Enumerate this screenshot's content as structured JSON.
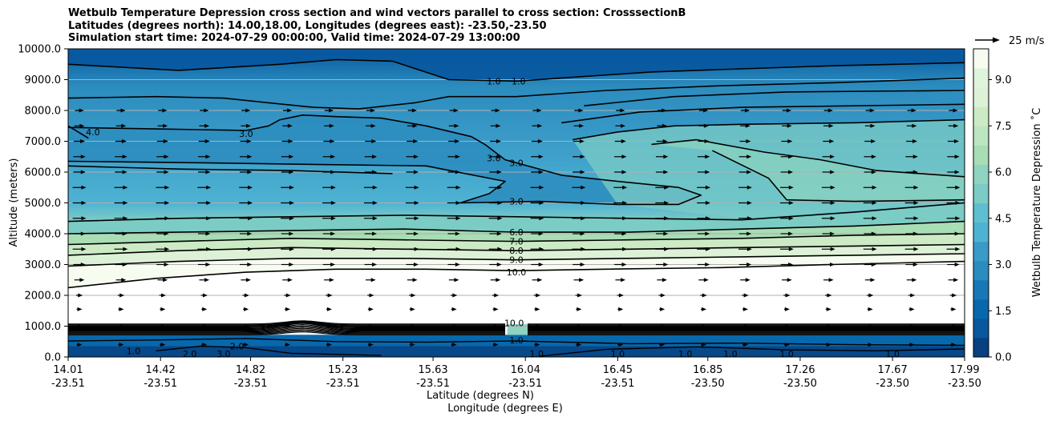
{
  "title_lines": [
    "Wetbulb Temperature Depression cross section and wind vectors parallel to cross section: CrosssectionB",
    "Latitudes (degrees north): 14.00,18.00, Longitudes (degrees east): -23.50,-23.50",
    "Simulation start time: 2024-07-29 00:00:00, Valid time: 2024-07-29 13:00:00"
  ],
  "chart_data": {
    "type": "heatmap",
    "subtype": "filled contour cross-section with line contours and wind vectors",
    "ylabel": "Altitude (meters)",
    "xlabel_lines": [
      "Latitude (degrees N)",
      "Longitude (degrees E)"
    ],
    "ylim": [
      0,
      10000
    ],
    "y_ticks": [
      "0.0",
      "1000.0",
      "2000.0",
      "3000.0",
      "4000.0",
      "5000.0",
      "6000.0",
      "7000.0",
      "8000.0",
      "9000.0",
      "10000.0"
    ],
    "x_ticks": [
      {
        "lat": "14.01",
        "lon": "-23.51"
      },
      {
        "lat": "14.42",
        "lon": "-23.51"
      },
      {
        "lat": "14.82",
        "lon": "-23.51"
      },
      {
        "lat": "15.23",
        "lon": "-23.51"
      },
      {
        "lat": "15.63",
        "lon": "-23.51"
      },
      {
        "lat": "16.04",
        "lon": "-23.51"
      },
      {
        "lat": "16.45",
        "lon": "-23.51"
      },
      {
        "lat": "16.85",
        "lon": "-23.50"
      },
      {
        "lat": "17.26",
        "lon": "-23.50"
      },
      {
        "lat": "17.67",
        "lon": "-23.50"
      },
      {
        "lat": "17.99",
        "lon": "-23.50"
      }
    ],
    "grid": "horizontal",
    "colorbar": {
      "label": "Wetbulb Temperature Depression $^\\circ$C",
      "label_display": "Wetbulb Temperature Depression ˚C",
      "range": [
        0,
        10
      ],
      "ticks": [
        "0.0",
        "1.5",
        "3.0",
        "4.5",
        "6.0",
        "7.5",
        "9.0"
      ],
      "colors": [
        "#084081",
        "#08589e",
        "#0868ac",
        "#1a77b6",
        "#2b8cbe",
        "#3a9bc8",
        "#4eb3d3",
        "#5fbfd0",
        "#7bccc4",
        "#8fd3c0",
        "#a8ddb5",
        "#bce5c1",
        "#ccebc5",
        "#dcf1d6",
        "#e0f3db",
        "#f7fcf0"
      ]
    },
    "quiver_key": {
      "label": "25 m/s",
      "speed": 25
    },
    "contour_labels": [
      {
        "text": "1.0",
        "lat": 15.9,
        "alt": 8950
      },
      {
        "text": "1.0",
        "lat": 16.01,
        "alt": 8950
      },
      {
        "text": "3.0",
        "lat": 14.8,
        "alt": 7250
      },
      {
        "text": "4.0",
        "lat": 14.12,
        "alt": 7300
      },
      {
        "text": "3.0",
        "lat": 15.9,
        "alt": 6450
      },
      {
        "text": "3.0",
        "lat": 16.0,
        "alt": 6300
      },
      {
        "text": "3.0",
        "lat": 16.0,
        "alt": 5050
      },
      {
        "text": "6.0",
        "lat": 16.0,
        "alt": 4050
      },
      {
        "text": "7.0",
        "lat": 16.0,
        "alt": 3750
      },
      {
        "text": "8.0",
        "lat": 16.0,
        "alt": 3450
      },
      {
        "text": "9.0",
        "lat": 16.0,
        "alt": 3150
      },
      {
        "text": "10.0",
        "lat": 16.0,
        "alt": 2750
      },
      {
        "text": "10.0",
        "lat": 15.99,
        "alt": 1100
      },
      {
        "text": "1.0",
        "lat": 16.0,
        "alt": 550
      },
      {
        "text": "1.0",
        "lat": 14.3,
        "alt": 200
      },
      {
        "text": "2.0",
        "lat": 14.55,
        "alt": 100
      },
      {
        "text": "3.0",
        "lat": 14.7,
        "alt": 100
      },
      {
        "text": "2.0",
        "lat": 14.76,
        "alt": 350
      },
      {
        "text": "1.0",
        "lat": 16.09,
        "alt": 100
      },
      {
        "text": "1.0",
        "lat": 16.45,
        "alt": 100
      },
      {
        "text": "1.0",
        "lat": 16.75,
        "alt": 100
      },
      {
        "text": "1.0",
        "lat": 16.95,
        "alt": 100
      },
      {
        "text": "1.0",
        "lat": 17.2,
        "alt": 100
      },
      {
        "text": "1.0",
        "lat": 17.67,
        "alt": 100
      }
    ],
    "contour_lines": [
      {
        "level": 1.0,
        "points": [
          [
            14.01,
            9500
          ],
          [
            14.5,
            9300
          ],
          [
            14.95,
            9500
          ],
          [
            15.2,
            9650
          ],
          [
            15.45,
            9600
          ],
          [
            15.7,
            9000
          ],
          [
            16.0,
            8950
          ],
          [
            16.3,
            9100
          ],
          [
            16.6,
            9250
          ],
          [
            17.0,
            9350
          ],
          [
            17.4,
            9450
          ],
          [
            17.99,
            9550
          ]
        ]
      },
      {
        "level": 2.0,
        "points": [
          [
            14.01,
            8400
          ],
          [
            14.4,
            8450
          ],
          [
            14.7,
            8400
          ],
          [
            14.9,
            8250
          ],
          [
            15.1,
            8100
          ],
          [
            15.3,
            8050
          ],
          [
            15.55,
            8250
          ],
          [
            15.7,
            8450
          ],
          [
            16.0,
            8450
          ],
          [
            16.4,
            8650
          ],
          [
            16.9,
            8800
          ],
          [
            17.4,
            8900
          ],
          [
            17.99,
            9050
          ]
        ]
      },
      {
        "level": 2.5,
        "points": [
          [
            16.3,
            8150
          ],
          [
            16.7,
            8450
          ],
          [
            17.2,
            8600
          ],
          [
            17.99,
            8650
          ]
        ]
      },
      {
        "level": 2.8,
        "points": [
          [
            16.2,
            7600
          ],
          [
            16.55,
            7950
          ],
          [
            17.0,
            8100
          ],
          [
            17.5,
            8150
          ],
          [
            17.99,
            8200
          ]
        ]
      },
      {
        "level": 3.0,
        "points": [
          [
            14.01,
            7450
          ],
          [
            14.4,
            7400
          ],
          [
            14.8,
            7350
          ],
          [
            14.9,
            7500
          ],
          [
            14.95,
            7700
          ],
          [
            15.05,
            7850
          ],
          [
            15.2,
            7800
          ],
          [
            15.4,
            7750
          ],
          [
            15.6,
            7500
          ],
          [
            15.8,
            7150
          ],
          [
            15.86,
            6900
          ],
          [
            15.95,
            6400
          ],
          [
            16.2,
            5900
          ],
          [
            16.45,
            5700
          ],
          [
            16.72,
            5500
          ],
          [
            16.82,
            5250
          ],
          [
            16.72,
            4950
          ],
          [
            16.45,
            4950
          ],
          [
            16.1,
            5050
          ],
          [
            15.75,
            5000
          ],
          [
            15.88,
            5300
          ],
          [
            15.95,
            5700
          ],
          [
            15.6,
            6200
          ],
          [
            15.1,
            6250
          ],
          [
            14.6,
            6300
          ],
          [
            14.01,
            6350
          ]
        ]
      },
      {
        "level": 3.2,
        "points": [
          [
            14.01,
            6200
          ],
          [
            14.5,
            6100
          ],
          [
            15.0,
            6050
          ],
          [
            15.45,
            5950
          ]
        ]
      },
      {
        "level": 3.4,
        "points": [
          [
            16.25,
            7050
          ],
          [
            16.45,
            7300
          ],
          [
            16.7,
            7500
          ],
          [
            17.0,
            7550
          ],
          [
            17.5,
            7600
          ],
          [
            17.99,
            7700
          ]
        ]
      },
      {
        "level": 3.8,
        "points": [
          [
            16.6,
            6900
          ],
          [
            16.8,
            7050
          ],
          [
            17.1,
            6650
          ],
          [
            17.35,
            6400
          ],
          [
            17.6,
            6050
          ],
          [
            17.99,
            5850
          ]
        ]
      },
      {
        "level": 3.5,
        "points": [
          [
            16.87,
            6700
          ],
          [
            17.12,
            5800
          ],
          [
            17.2,
            5100
          ],
          [
            17.5,
            5050
          ],
          [
            17.99,
            5100
          ]
        ]
      },
      {
        "level": 4.0,
        "points": [
          [
            14.01,
            7500
          ],
          [
            14.1,
            7100
          ]
        ]
      },
      {
        "level": 5.0,
        "points": [
          [
            14.01,
            4400
          ],
          [
            14.5,
            4500
          ],
          [
            15.0,
            4550
          ],
          [
            15.5,
            4600
          ],
          [
            16.0,
            4550
          ],
          [
            16.5,
            4500
          ],
          [
            17.0,
            4450
          ],
          [
            17.5,
            4700
          ],
          [
            17.99,
            5000
          ]
        ]
      },
      {
        "level": 6.0,
        "points": [
          [
            14.01,
            4000
          ],
          [
            14.5,
            4050
          ],
          [
            15.0,
            4100
          ],
          [
            15.5,
            4150
          ],
          [
            16.0,
            4050
          ],
          [
            16.5,
            4050
          ],
          [
            17.0,
            4150
          ],
          [
            17.5,
            4250
          ],
          [
            17.99,
            4400
          ]
        ]
      },
      {
        "level": 7.0,
        "points": [
          [
            14.01,
            3650
          ],
          [
            14.5,
            3750
          ],
          [
            15.0,
            3850
          ],
          [
            15.5,
            3800
          ],
          [
            16.0,
            3750
          ],
          [
            16.5,
            3800
          ],
          [
            17.0,
            3850
          ],
          [
            17.5,
            3950
          ],
          [
            17.99,
            4000
          ]
        ]
      },
      {
        "level": 8.0,
        "points": [
          [
            14.01,
            3300
          ],
          [
            14.5,
            3450
          ],
          [
            15.0,
            3550
          ],
          [
            15.5,
            3500
          ],
          [
            16.0,
            3450
          ],
          [
            16.5,
            3500
          ],
          [
            17.0,
            3550
          ],
          [
            17.5,
            3600
          ],
          [
            17.99,
            3650
          ]
        ]
      },
      {
        "level": 9.0,
        "points": [
          [
            14.01,
            2950
          ],
          [
            14.5,
            3100
          ],
          [
            15.0,
            3200
          ],
          [
            15.5,
            3200
          ],
          [
            16.0,
            3150
          ],
          [
            16.5,
            3200
          ],
          [
            17.0,
            3250
          ],
          [
            17.5,
            3300
          ],
          [
            17.99,
            3350
          ]
        ]
      },
      {
        "level": 10.0,
        "points": [
          [
            14.01,
            2250
          ],
          [
            14.4,
            2550
          ],
          [
            14.8,
            2750
          ],
          [
            15.2,
            2850
          ],
          [
            15.6,
            2850
          ],
          [
            16.0,
            2800
          ],
          [
            16.4,
            2850
          ],
          [
            16.9,
            2900
          ],
          [
            17.4,
            3000
          ],
          [
            17.99,
            3100
          ]
        ]
      }
    ],
    "boundary_contours": {
      "levels": [
        1,
        10
      ],
      "upper_alt": 1070,
      "lower_alt": 720,
      "line_count": 14,
      "gap_lat_range": [
        15.96,
        16.05
      ],
      "bump": {
        "lat": 15.05,
        "alt_offset": 180
      }
    },
    "surface_contours": [
      {
        "level": 1.0,
        "points": [
          [
            14.01,
            520
          ],
          [
            14.4,
            550
          ],
          [
            14.8,
            600
          ],
          [
            15.2,
            500
          ],
          [
            15.6,
            480
          ],
          [
            16.0,
            520
          ],
          [
            16.5,
            430
          ],
          [
            17.0,
            450
          ],
          [
            17.5,
            400
          ],
          [
            17.99,
            380
          ]
        ]
      },
      {
        "level": 2.0,
        "points": [
          [
            14.4,
            200
          ],
          [
            14.6,
            350
          ],
          [
            14.8,
            300
          ],
          [
            15.0,
            120
          ],
          [
            15.4,
            50
          ]
        ]
      },
      {
        "level": 1.0,
        "points": [
          [
            16.1,
            20
          ],
          [
            16.4,
            250
          ],
          [
            16.8,
            330
          ],
          [
            17.2,
            230
          ],
          [
            17.6,
            200
          ],
          [
            17.99,
            260
          ]
        ]
      }
    ],
    "wind": {
      "altitudes": [
        400,
        1000,
        1550,
        2000,
        2500,
        3000,
        3500,
        4000,
        4500,
        5000,
        5500,
        6000,
        6500,
        7000,
        7500,
        8000
      ],
      "relative_lengths": [
        0.25,
        0.3,
        0.25,
        0.3,
        0.45,
        0.55,
        0.6,
        0.55,
        0.6,
        0.6,
        0.6,
        0.55,
        0.55,
        0.5,
        0.45,
        0.4
      ],
      "columns": 22
    }
  }
}
